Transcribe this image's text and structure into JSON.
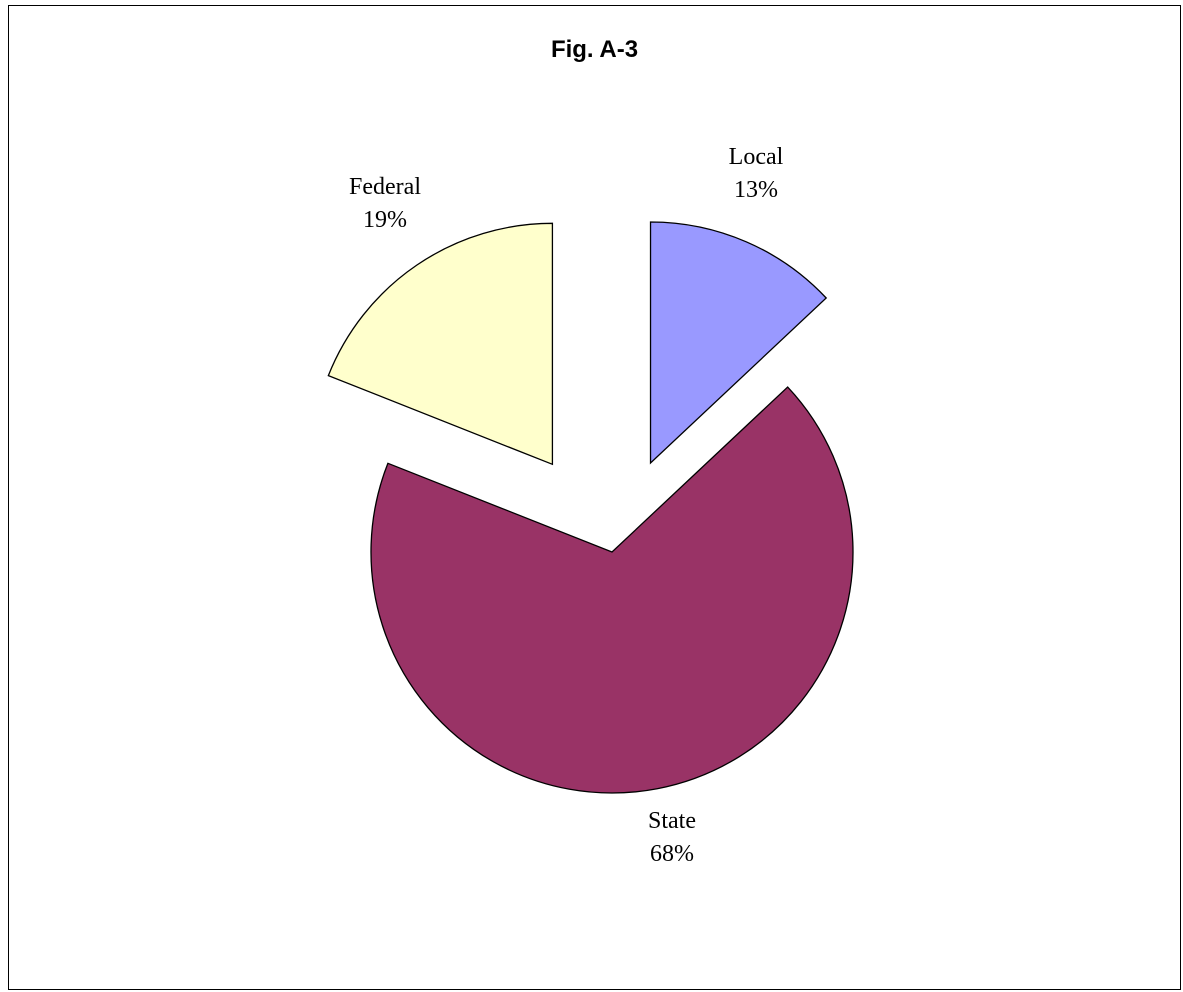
{
  "chart_data": {
    "type": "pie",
    "title": "Fig. A-3",
    "exploded": true,
    "slices": [
      {
        "label": "Local",
        "value": 13,
        "value_label": "13%",
        "color": "#9999FF"
      },
      {
        "label": "State",
        "value": 68,
        "value_label": "68%",
        "color": "#993366"
      },
      {
        "label": "Federal",
        "value": 19,
        "value_label": "19%",
        "color": "#FFFFCC"
      }
    ]
  }
}
